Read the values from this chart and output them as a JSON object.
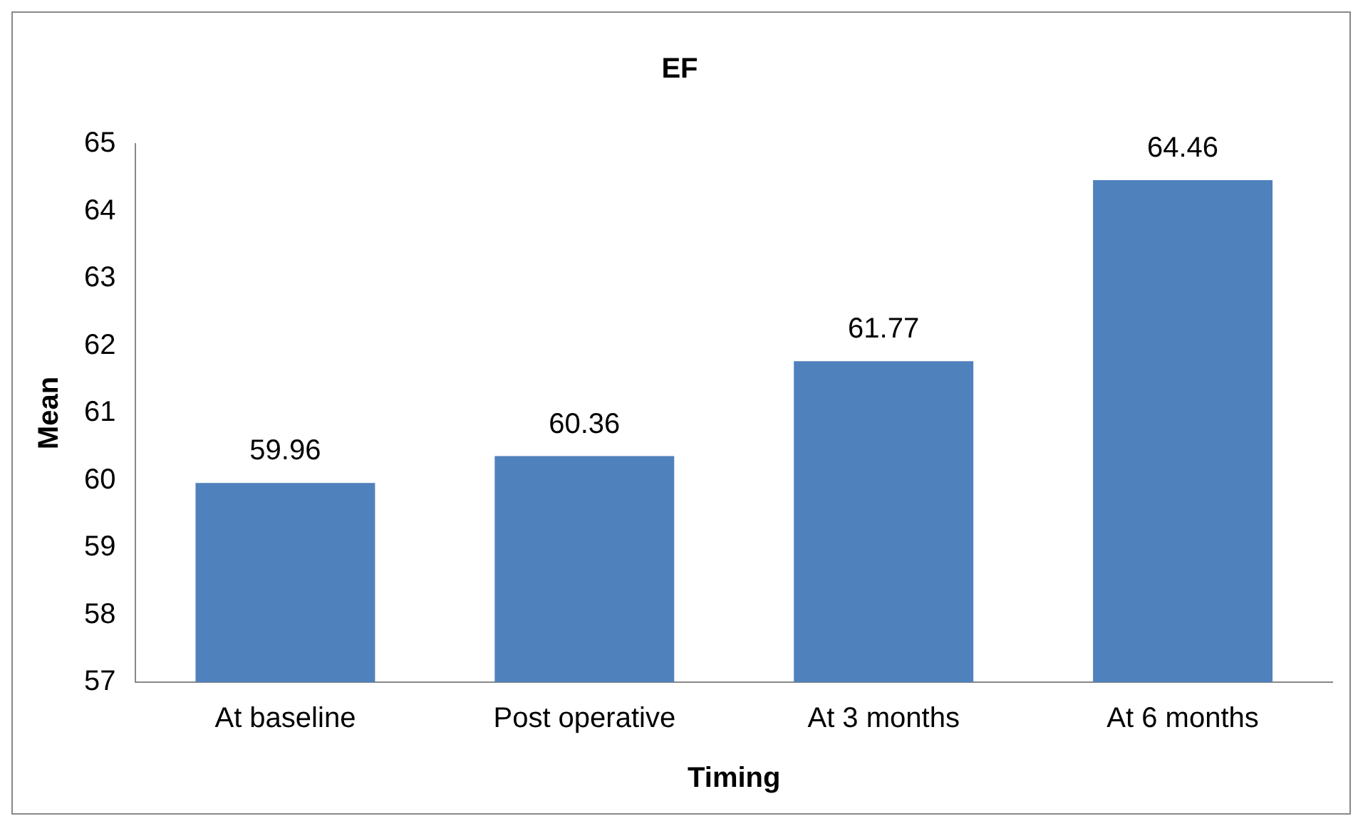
{
  "chart_data": {
    "type": "bar",
    "title": "EF",
    "xlabel": "Timing",
    "ylabel": "Mean",
    "categories": [
      "At baseline",
      "Post operative",
      "At 3 months",
      "At 6 months"
    ],
    "values": [
      59.96,
      60.36,
      61.77,
      64.46
    ],
    "color": "#4f81bd",
    "ylim": [
      57,
      65
    ],
    "yticks": [
      57,
      58,
      59,
      60,
      61,
      62,
      63,
      64,
      65
    ],
    "grid": false,
    "legend": false,
    "data_labels": true
  }
}
